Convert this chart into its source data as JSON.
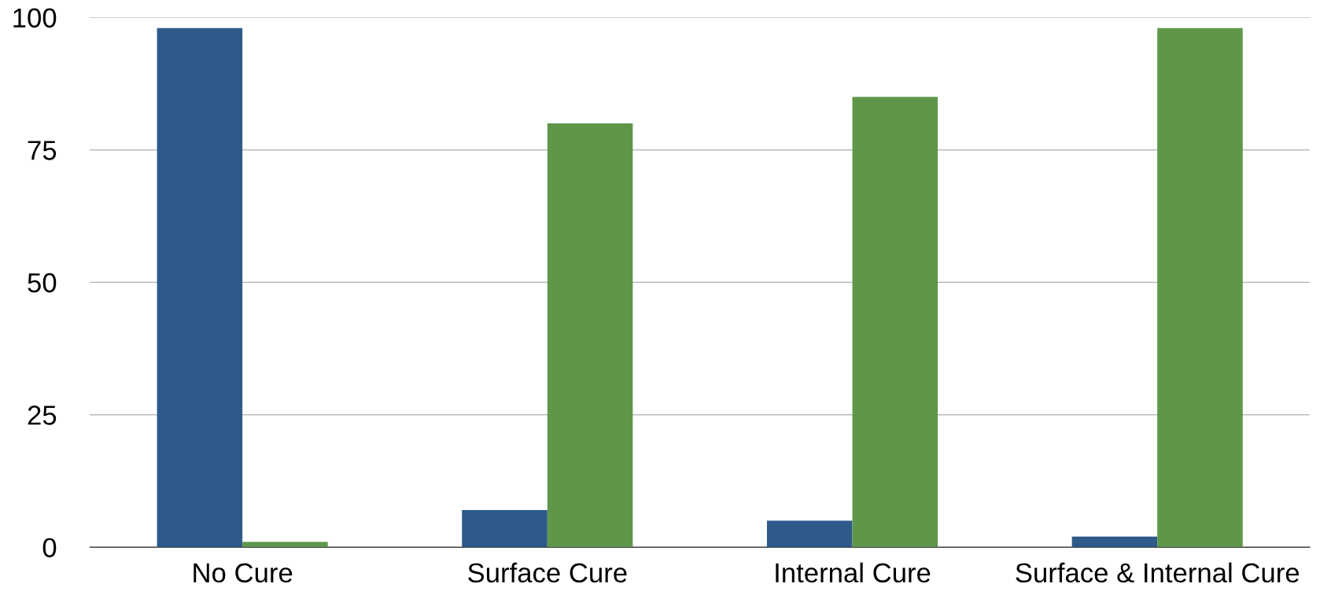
{
  "chart_data": {
    "type": "bar",
    "categories": [
      "No Cure",
      "Surface Cure",
      "Internal Cure",
      "Surface & Internal Cure"
    ],
    "series": [
      {
        "color": "#2e5a8a",
        "values": [
          98,
          7,
          5,
          2
        ]
      },
      {
        "color": "#5e974a",
        "values": [
          1,
          80,
          85,
          98
        ]
      }
    ],
    "ylim": [
      0,
      100
    ],
    "yticks": [
      0,
      25,
      50,
      75,
      100
    ],
    "grid": "y"
  }
}
